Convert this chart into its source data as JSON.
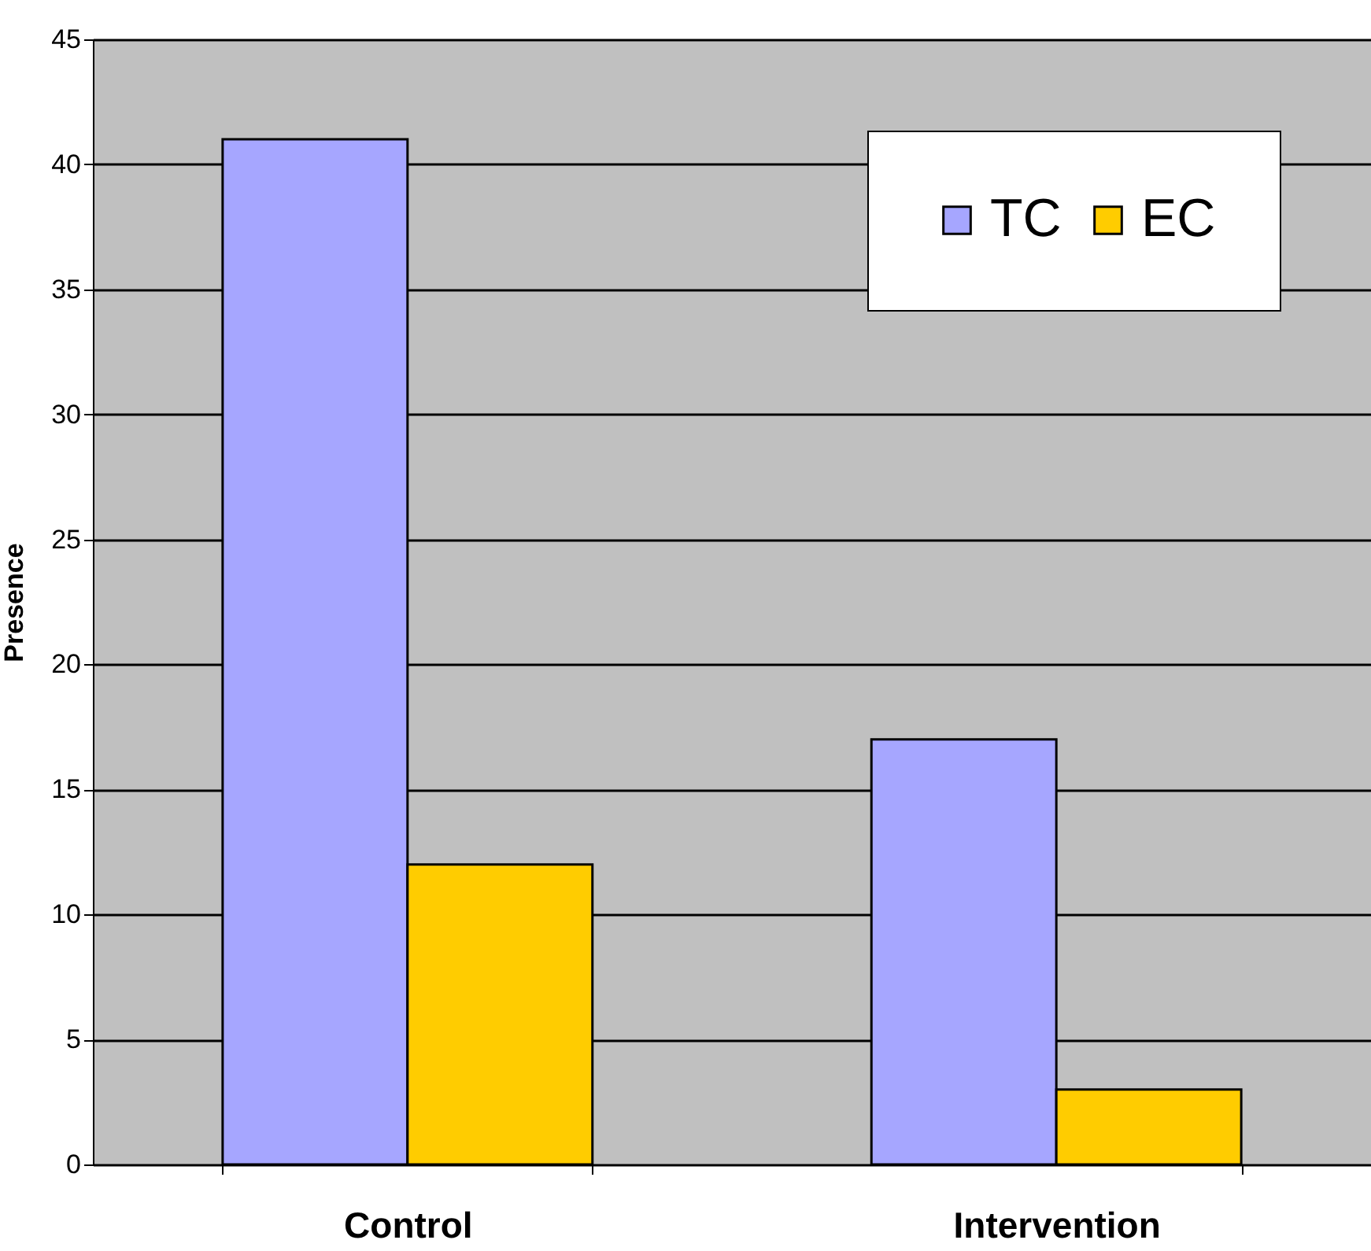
{
  "chart_data": {
    "type": "bar",
    "ylabel": "Presence",
    "categories": [
      "Control",
      "Intervention"
    ],
    "series": [
      {
        "name": "TC",
        "color": "#a6a6ff",
        "values": [
          41,
          17
        ]
      },
      {
        "name": "EC",
        "color": "#ffcc00",
        "values": [
          12,
          3
        ]
      }
    ],
    "ylim": [
      0,
      45
    ],
    "yticks": [
      0,
      5,
      10,
      15,
      20,
      25,
      30,
      35,
      40,
      45
    ],
    "grid": "y",
    "legend": "top right"
  }
}
